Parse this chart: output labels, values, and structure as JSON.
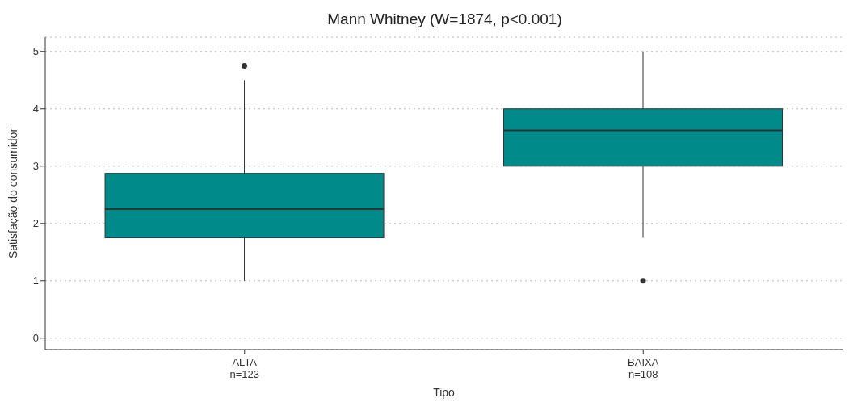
{
  "chart_data": {
    "type": "box",
    "title": "Mann Whitney (W=1874, p<0.001)",
    "xlabel": "Tipo",
    "ylabel": "Satisfação do consumidor",
    "categories": [
      "ALTA\nn=123",
      "BAIXA\nn=108"
    ],
    "boxes": [
      {
        "low": 1,
        "q1": 1.75,
        "median": 2.25,
        "q3": 2.875,
        "high": 4.5,
        "outliers": [
          4.75
        ]
      },
      {
        "low": 1.75,
        "q1": 3,
        "median": 3.625,
        "q3": 4,
        "high": 5,
        "outliers": [
          1
        ]
      }
    ],
    "color": "#008b8b",
    "ylim": [
      -0.2,
      5.25
    ],
    "yticks": [
      0,
      1,
      2,
      3,
      4,
      5
    ],
    "grid": "y",
    "legend": false
  }
}
